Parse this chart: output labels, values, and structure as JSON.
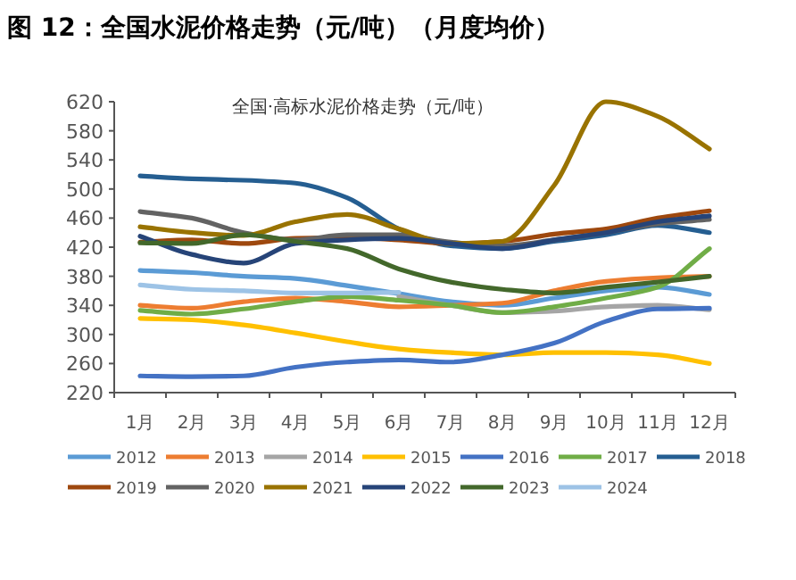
{
  "chart_data": {
    "type": "line",
    "title": "图 12：全国水泥价格走势（元/吨）（月度均价）",
    "subtitle": "全国·高标水泥价格走势（元/吨）",
    "categories": [
      "1月",
      "2月",
      "3月",
      "4月",
      "5月",
      "6月",
      "7月",
      "8月",
      "9月",
      "10月",
      "11月",
      "12月"
    ],
    "series": [
      {
        "name": "2012",
        "color": "#5b9bd5",
        "values": [
          388,
          385,
          380,
          377,
          367,
          356,
          345,
          340,
          350,
          360,
          365,
          355
        ]
      },
      {
        "name": "2013",
        "color": "#ed7d31",
        "values": [
          340,
          336,
          345,
          350,
          345,
          338,
          340,
          343,
          360,
          373,
          378,
          380
        ]
      },
      {
        "name": "2014",
        "color": "#a5a5a5",
        "values": [
          null,
          null,
          null,
          null,
          null,
          352,
          340,
          330,
          332,
          338,
          340,
          334
        ]
      },
      {
        "name": "2015",
        "color": "#ffc000",
        "values": [
          322,
          320,
          313,
          302,
          290,
          280,
          275,
          272,
          275,
          275,
          272,
          260
        ]
      },
      {
        "name": "2016",
        "color": "#4472c4",
        "values": [
          243,
          242,
          243,
          255,
          262,
          265,
          262,
          272,
          288,
          318,
          335,
          336
        ]
      },
      {
        "name": "2017",
        "color": "#70ad47",
        "values": [
          333,
          328,
          335,
          345,
          352,
          347,
          340,
          330,
          338,
          350,
          365,
          418
        ]
      },
      {
        "name": "2018",
        "color": "#255e91",
        "values": [
          518,
          514,
          512,
          508,
          488,
          445,
          422,
          418,
          428,
          437,
          450,
          440
        ]
      },
      {
        "name": "2019",
        "color": "#9e480e",
        "values": [
          427,
          430,
          425,
          432,
          433,
          430,
          425,
          428,
          438,
          445,
          460,
          470
        ]
      },
      {
        "name": "2020",
        "color": "#636363",
        "values": [
          469,
          460,
          440,
          430,
          437,
          437,
          427,
          422,
          430,
          440,
          452,
          458
        ]
      },
      {
        "name": "2021",
        "color": "#997300",
        "values": [
          448,
          440,
          436,
          455,
          465,
          445,
          425,
          428,
          505,
          620,
          600,
          555
        ]
      },
      {
        "name": "2022",
        "color": "#264478",
        "values": [
          435,
          410,
          398,
          425,
          430,
          432,
          425,
          418,
          430,
          440,
          455,
          463
        ]
      },
      {
        "name": "2023",
        "color": "#43682b",
        "values": [
          426,
          425,
          437,
          428,
          418,
          390,
          372,
          362,
          357,
          365,
          372,
          380
        ]
      },
      {
        "name": "2024",
        "color": "#9dc3e6",
        "values": [
          368,
          362,
          360,
          357,
          357,
          358,
          null,
          null,
          null,
          null,
          null,
          null
        ]
      }
    ],
    "ylim": [
      220,
      620
    ],
    "yticks": [
      220,
      260,
      300,
      340,
      380,
      420,
      460,
      500,
      540,
      580,
      620
    ],
    "legend": "bottom",
    "grid": false,
    "marker": "none",
    "line_style": "solid"
  }
}
